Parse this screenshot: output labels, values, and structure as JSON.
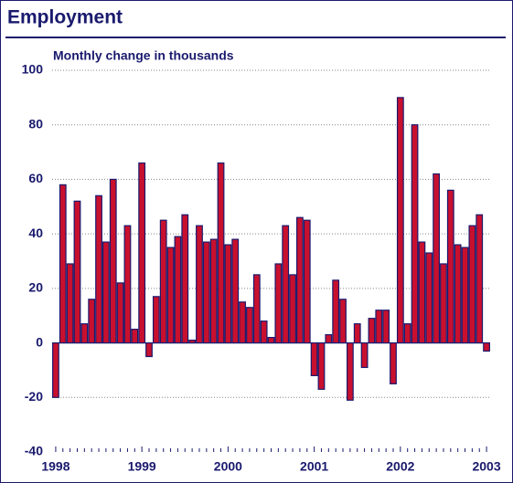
{
  "chart_data": {
    "type": "bar",
    "title": "Employment",
    "subtitle": "Monthly change in thousands",
    "categories": [
      "1998",
      null,
      null,
      null,
      null,
      null,
      null,
      null,
      null,
      null,
      null,
      null,
      "1999",
      null,
      null,
      null,
      null,
      null,
      null,
      null,
      null,
      null,
      null,
      null,
      "2000",
      null,
      null,
      null,
      null,
      null,
      null,
      null,
      null,
      null,
      null,
      null,
      "2001",
      null,
      null,
      null,
      null,
      null,
      null,
      null,
      null,
      null,
      null,
      null,
      "2002",
      null,
      null,
      null,
      null,
      null,
      null,
      null,
      null,
      null,
      null,
      null,
      "2003"
    ],
    "values": [
      -20,
      58,
      29,
      52,
      7,
      16,
      54,
      37,
      60,
      22,
      43,
      5,
      66,
      -5,
      17,
      45,
      35,
      39,
      47,
      1,
      43,
      37,
      38,
      66,
      36,
      38,
      15,
      13,
      25,
      8,
      2,
      29,
      43,
      25,
      46,
      45,
      -12,
      -17,
      3,
      23,
      16,
      -21,
      7,
      -9,
      9,
      12,
      12,
      -15,
      90,
      7,
      80,
      37,
      33,
      62,
      29,
      56,
      36,
      35,
      43,
      47,
      -3
    ],
    "color": "#c8102e",
    "edgecolor": "#1a1a6e",
    "ylim": [
      -40,
      100
    ],
    "yticks": [
      -40,
      -20,
      0,
      20,
      40,
      60,
      80,
      100
    ],
    "grid": true
  }
}
